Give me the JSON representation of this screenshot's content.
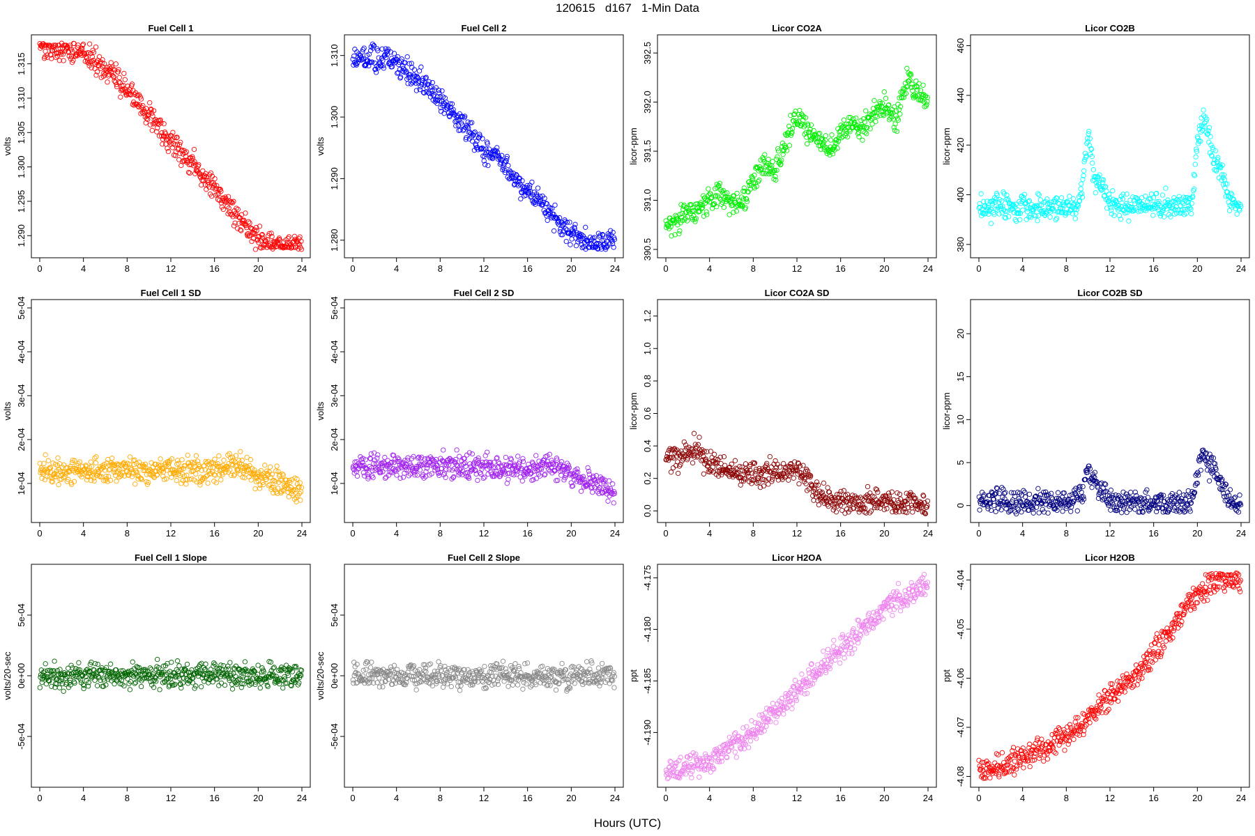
{
  "header": {
    "title": "120615   d167   1-Min Data"
  },
  "x_axis_title": "Hours (UTC)",
  "chart_data": [
    {
      "type": "scatter",
      "title": "Fuel Cell 1",
      "ylabel": "volts",
      "color": "#ff0000",
      "xlim": [
        0,
        24
      ],
      "ylim": [
        1.288,
        1.318
      ],
      "x_ticks": [
        0,
        4,
        8,
        12,
        16,
        20,
        24
      ],
      "x_tick_labels": [
        "0",
        "4",
        "8",
        "12",
        "16",
        "20",
        "24"
      ],
      "y_ticks": [
        1.29,
        1.295,
        1.3,
        1.305,
        1.31,
        1.315
      ],
      "y_tick_labels": [
        "1.290",
        "1.295",
        "1.300",
        "1.305",
        "1.310",
        "1.315"
      ],
      "series": [
        {
          "x": [
            0,
            1,
            2,
            3,
            4,
            5,
            6,
            7,
            8,
            9,
            10,
            11,
            12,
            13,
            14,
            15,
            16,
            17,
            18,
            19,
            20,
            21,
            22,
            23,
            24
          ],
          "y": [
            1.3178,
            1.3175,
            1.3172,
            1.3168,
            1.3165,
            1.3155,
            1.3142,
            1.3128,
            1.3112,
            1.3095,
            1.3075,
            1.3053,
            1.3032,
            1.3022,
            1.3005,
            1.2985,
            1.2968,
            1.295,
            1.293,
            1.291,
            1.2895,
            1.2885,
            1.2882,
            1.2885,
            1.2893
          ]
        }
      ]
    },
    {
      "type": "scatter",
      "title": "Fuel Cell 2",
      "ylabel": "volts",
      "color": "#0000ff",
      "xlim": [
        0,
        24
      ],
      "ylim": [
        1.2785,
        1.312
      ],
      "x_ticks": [
        0,
        4,
        8,
        12,
        16,
        20,
        24
      ],
      "x_tick_labels": [
        "0",
        "4",
        "8",
        "12",
        "16",
        "20",
        "24"
      ],
      "y_ticks": [
        1.28,
        1.29,
        1.3,
        1.31
      ],
      "y_tick_labels": [
        "1.280",
        "1.290",
        "1.300",
        "1.310"
      ],
      "series": [
        {
          "x": [
            0,
            1,
            2,
            3,
            4,
            5,
            6,
            7,
            8,
            9,
            10,
            11,
            12,
            13,
            14,
            15,
            16,
            17,
            18,
            19,
            20,
            21,
            22,
            23,
            24
          ],
          "y": [
            1.31,
            1.3098,
            1.3095,
            1.3092,
            1.3088,
            1.3075,
            1.306,
            1.3045,
            1.3028,
            1.301,
            1.299,
            1.2968,
            1.2948,
            1.2938,
            1.2918,
            1.2898,
            1.288,
            1.2865,
            1.2845,
            1.2825,
            1.281,
            1.28,
            1.2795,
            1.2797,
            1.2805
          ]
        }
      ]
    },
    {
      "type": "scatter",
      "title": "Licor CO2A",
      "ylabel": "licor-ppm",
      "color": "#00ee00",
      "xlim": [
        0,
        24
      ],
      "ylim": [
        390.5,
        392.6
      ],
      "x_ticks": [
        0,
        4,
        8,
        12,
        16,
        20,
        24
      ],
      "x_tick_labels": [
        "0",
        "4",
        "8",
        "12",
        "16",
        "20",
        "24"
      ],
      "y_ticks": [
        390.5,
        391,
        391.5,
        392,
        392.5
      ],
      "y_tick_labels": [
        "390.5",
        "391.0",
        "391.5",
        "392.0",
        "392.5"
      ],
      "series": [
        {
          "x": [
            0,
            1,
            2,
            3,
            4,
            5,
            6,
            7,
            8,
            9,
            10,
            11,
            12,
            13,
            14,
            15,
            16,
            17,
            18,
            19,
            20,
            21,
            22,
            23,
            24
          ],
          "y": [
            390.75,
            390.8,
            390.85,
            390.9,
            391.0,
            391.05,
            391.0,
            390.95,
            391.2,
            391.4,
            391.3,
            391.6,
            391.9,
            391.7,
            391.6,
            391.5,
            391.65,
            391.8,
            391.7,
            391.9,
            392.0,
            391.8,
            392.2,
            392.1,
            392.0
          ]
        }
      ]
    },
    {
      "type": "scatter",
      "title": "Licor CO2B",
      "ylabel": "licor-ppm",
      "color": "#00ffff",
      "xlim": [
        0,
        24
      ],
      "ylim": [
        378,
        461
      ],
      "x_ticks": [
        0,
        4,
        8,
        12,
        16,
        20,
        24
      ],
      "x_tick_labels": [
        "0",
        "4",
        "8",
        "12",
        "16",
        "20",
        "24"
      ],
      "y_ticks": [
        380,
        400,
        420,
        440,
        460
      ],
      "y_tick_labels": [
        "380",
        "400",
        "420",
        "440",
        "460"
      ],
      "series": [
        {
          "x": [
            0,
            1,
            2,
            3,
            4,
            5,
            6,
            7,
            8,
            9,
            9.5,
            10,
            10.5,
            11,
            11.5,
            12,
            14,
            16,
            18,
            19.5,
            20,
            20.5,
            21,
            21.5,
            22,
            22.5,
            23,
            24
          ],
          "y": [
            395,
            395,
            395,
            395,
            395,
            395,
            395,
            395,
            395,
            395,
            405,
            425,
            408,
            405,
            402,
            396,
            396,
            396,
            396,
            397,
            420,
            430,
            425,
            415,
            412,
            405,
            397,
            396
          ]
        }
      ]
    },
    {
      "type": "scatter",
      "title": "Fuel Cell 1 SD",
      "ylabel": "volts",
      "color": "#ffaa00",
      "xlim": [
        0,
        24
      ],
      "ylim": [
        3e-05,
        0.0005
      ],
      "x_ticks": [
        0,
        4,
        8,
        12,
        16,
        20,
        24
      ],
      "x_tick_labels": [
        "0",
        "4",
        "8",
        "12",
        "16",
        "20",
        "24"
      ],
      "y_ticks": [
        0.0001,
        0.0002,
        0.0003,
        0.0004,
        0.0005
      ],
      "y_tick_labels": [
        "1e-04",
        "2e-04",
        "3e-04",
        "4e-04",
        "5e-04"
      ],
      "series": [
        {
          "x": [
            0,
            2,
            4,
            6,
            8,
            10,
            12,
            14,
            16,
            18,
            20,
            22,
            24
          ],
          "y": [
            0.00013,
            0.00013,
            0.00013,
            0.00013,
            0.00013,
            0.00013,
            0.00013,
            0.00013,
            0.00013,
            0.00014,
            0.00012,
            0.0001,
            8e-05
          ]
        }
      ]
    },
    {
      "type": "scatter",
      "title": "Fuel Cell 2 SD",
      "ylabel": "volts",
      "color": "#a020f0",
      "xlim": [
        0,
        24
      ],
      "ylim": [
        3e-05,
        0.0005
      ],
      "x_ticks": [
        0,
        4,
        8,
        12,
        16,
        20,
        24
      ],
      "x_tick_labels": [
        "0",
        "4",
        "8",
        "12",
        "16",
        "20",
        "24"
      ],
      "y_ticks": [
        0.0001,
        0.0002,
        0.0003,
        0.0004,
        0.0005
      ],
      "y_tick_labels": [
        "1e-04",
        "2e-04",
        "3e-04",
        "4e-04",
        "5e-04"
      ],
      "series": [
        {
          "x": [
            0,
            2,
            4,
            6,
            8,
            10,
            12,
            14,
            16,
            18,
            20,
            22,
            24
          ],
          "y": [
            0.00013,
            0.00014,
            0.00014,
            0.00014,
            0.00014,
            0.00014,
            0.00014,
            0.00013,
            0.00013,
            0.00014,
            0.00012,
            0.0001,
            8e-05
          ]
        }
      ]
    },
    {
      "type": "scatter",
      "title": "Licor CO2A SD",
      "ylabel": "licor-ppm",
      "color": "#8b0000",
      "xlim": [
        0,
        24
      ],
      "ylim": [
        -0.02,
        1.25
      ],
      "x_ticks": [
        0,
        4,
        8,
        12,
        16,
        20,
        24
      ],
      "x_tick_labels": [
        "0",
        "4",
        "8",
        "12",
        "16",
        "20",
        "24"
      ],
      "y_ticks": [
        0,
        0.2,
        0.4,
        0.6,
        0.8,
        1.0,
        1.2
      ],
      "y_tick_labels": [
        "0.0",
        "0.2",
        "0.4",
        "0.6",
        "0.8",
        "1.0",
        "1.2"
      ],
      "series": [
        {
          "x": [
            0,
            1,
            2,
            3,
            4,
            5,
            6,
            7,
            8,
            9,
            10,
            11,
            12,
            13,
            14,
            15,
            16,
            17,
            18,
            19,
            20,
            21,
            22,
            23,
            24
          ],
          "y": [
            0.33,
            0.33,
            0.35,
            0.38,
            0.28,
            0.27,
            0.23,
            0.22,
            0.22,
            0.22,
            0.24,
            0.26,
            0.25,
            0.2,
            0.1,
            0.06,
            0.05,
            0.05,
            0.05,
            0.07,
            0.07,
            0.05,
            0.04,
            0.04,
            0.03
          ]
        }
      ]
    },
    {
      "type": "scatter",
      "title": "Licor CO2B SD",
      "ylabel": "licor-ppm",
      "color": "#000080",
      "xlim": [
        0,
        24
      ],
      "ylim": [
        -1,
        23
      ],
      "x_ticks": [
        0,
        4,
        8,
        12,
        16,
        20,
        24
      ],
      "x_tick_labels": [
        "0",
        "4",
        "8",
        "12",
        "16",
        "20",
        "24"
      ],
      "y_ticks": [
        0,
        5,
        10,
        15,
        20
      ],
      "y_tick_labels": [
        "0",
        "5",
        "10",
        "15",
        "20"
      ],
      "series": [
        {
          "x": [
            0,
            2,
            4,
            6,
            8,
            9.5,
            10,
            10.5,
            11,
            11.5,
            12,
            14,
            16,
            18,
            19.5,
            20,
            20.5,
            21,
            21.5,
            22,
            22.5,
            23,
            24
          ],
          "y": [
            0.4,
            0.4,
            0.4,
            0.4,
            0.3,
            1.5,
            4,
            2.5,
            2,
            1.5,
            0.3,
            0.2,
            0.2,
            0.2,
            0.3,
            4,
            6,
            5,
            4,
            3,
            2,
            0.5,
            0.2
          ]
        }
      ]
    },
    {
      "type": "scatter",
      "title": "Fuel Cell 1 Slope",
      "ylabel": "volts/20-sec",
      "color": "#006400",
      "xlim": [
        0,
        24
      ],
      "ylim": [
        -0.00085,
        0.00085
      ],
      "x_ticks": [
        0,
        4,
        8,
        12,
        16,
        20,
        24
      ],
      "x_tick_labels": [
        "0",
        "4",
        "8",
        "12",
        "16",
        "20",
        "24"
      ],
      "y_ticks": [
        -0.0005,
        0,
        0.0005
      ],
      "y_tick_labels": [
        "-5e-04",
        "0e+00",
        "5e-04"
      ],
      "series": [
        {
          "x": [
            0,
            4,
            8,
            12,
            16,
            20,
            24
          ],
          "y": [
            0,
            0,
            0,
            0,
            0,
            0,
            0
          ]
        }
      ]
    },
    {
      "type": "scatter",
      "title": "Fuel Cell 2 Slope",
      "ylabel": "volts/20-sec",
      "color": "#888888",
      "xlim": [
        0,
        24
      ],
      "ylim": [
        -0.00085,
        0.00085
      ],
      "x_ticks": [
        0,
        4,
        8,
        12,
        16,
        20,
        24
      ],
      "x_tick_labels": [
        "0",
        "4",
        "8",
        "12",
        "16",
        "20",
        "24"
      ],
      "y_ticks": [
        -0.0005,
        0,
        0.0005
      ],
      "y_tick_labels": [
        "-5e-04",
        "0e+00",
        "5e-04"
      ],
      "series": [
        {
          "x": [
            0,
            4,
            8,
            12,
            16,
            20,
            24
          ],
          "y": [
            0,
            0,
            0,
            0,
            0,
            0,
            0
          ]
        }
      ]
    },
    {
      "type": "scatter",
      "title": "Licor H2OA",
      "ylabel": "ppt",
      "color": "#ee82ee",
      "xlim": [
        0,
        24
      ],
      "ylim": [
        -4.1945,
        -4.1745
      ],
      "x_ticks": [
        0,
        4,
        8,
        12,
        16,
        20,
        24
      ],
      "x_tick_labels": [
        "0",
        "4",
        "8",
        "12",
        "16",
        "20",
        "24"
      ],
      "y_ticks": [
        -4.19,
        -4.185,
        -4.18,
        -4.175
      ],
      "y_tick_labels": [
        "-4.190",
        "-4.185",
        "-4.180",
        "-4.175"
      ],
      "series": [
        {
          "x": [
            0,
            1,
            2,
            3,
            4,
            5,
            6,
            7,
            8,
            9,
            10,
            11,
            12,
            13,
            14,
            15,
            16,
            17,
            18,
            19,
            20,
            21,
            22,
            23,
            24
          ],
          "y": [
            -4.194,
            -4.194,
            -4.193,
            -4.193,
            -4.193,
            -4.192,
            -4.191,
            -4.191,
            -4.19,
            -4.189,
            -4.188,
            -4.187,
            -4.186,
            -4.185,
            -4.184,
            -4.183,
            -4.182,
            -4.181,
            -4.18,
            -4.179,
            -4.178,
            -4.177,
            -4.177,
            -4.176,
            -4.176
          ]
        }
      ]
    },
    {
      "type": "scatter",
      "title": "Licor H2OB",
      "ylabel": "ppt",
      "color": "#ff0000",
      "xlim": [
        0,
        24
      ],
      "ylim": [
        -4.0805,
        -4.0385
      ],
      "x_ticks": [
        0,
        4,
        8,
        12,
        16,
        20,
        24
      ],
      "x_tick_labels": [
        "0",
        "4",
        "8",
        "12",
        "16",
        "20",
        "24"
      ],
      "y_ticks": [
        -4.08,
        -4.07,
        -4.06,
        -4.05,
        -4.04
      ],
      "y_tick_labels": [
        "-4.08",
        "-4.07",
        "-4.06",
        "-4.05",
        "-4.04"
      ],
      "series": [
        {
          "x": [
            0,
            1,
            2,
            3,
            4,
            5,
            6,
            7,
            8,
            9,
            10,
            11,
            12,
            13,
            14,
            15,
            16,
            17,
            18,
            19,
            20,
            21,
            22,
            23,
            24
          ],
          "y": [
            -4.079,
            -4.079,
            -4.078,
            -4.077,
            -4.076,
            -4.075,
            -4.074,
            -4.073,
            -4.072,
            -4.07,
            -4.068,
            -4.066,
            -4.064,
            -4.062,
            -4.06,
            -4.058,
            -4.055,
            -4.052,
            -4.049,
            -4.046,
            -4.043,
            -4.041,
            -4.04,
            -4.04,
            -4.04
          ]
        }
      ]
    }
  ]
}
